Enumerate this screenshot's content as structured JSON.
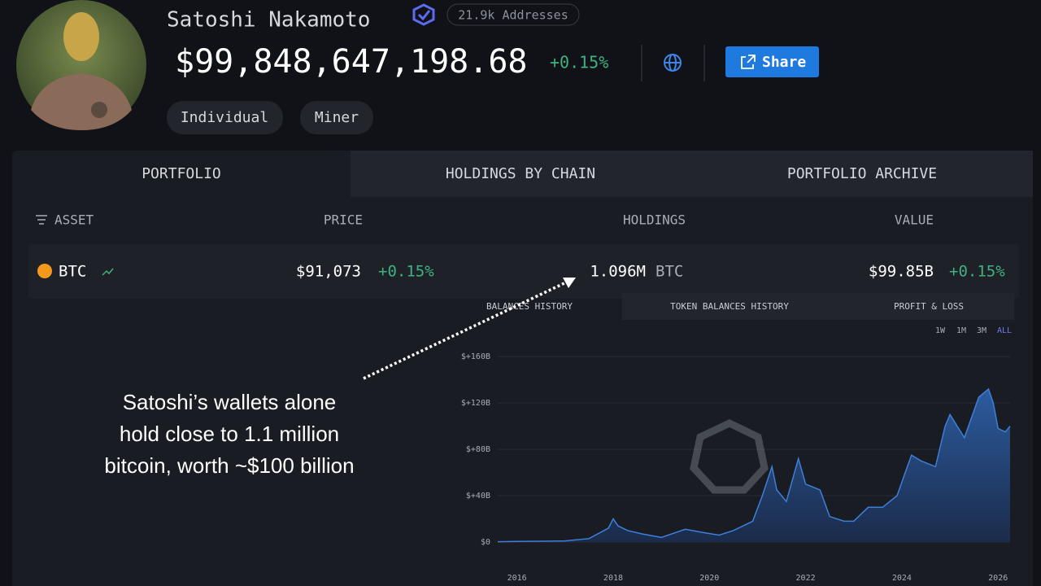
{
  "profile": {
    "name": "Satoshi Nakamoto",
    "addresses": "21.9k Addresses",
    "balance": "$99,848,647,198.68",
    "change": "+0.15%",
    "share": "Share",
    "tags": [
      "Individual",
      "Miner"
    ]
  },
  "tabs": [
    "PORTFOLIO",
    "HOLDINGS BY CHAIN",
    "PORTFOLIO ARCHIVE"
  ],
  "table": {
    "headers": [
      "ASSET",
      "PRICE",
      "HOLDINGS",
      "VALUE"
    ],
    "rows": [
      {
        "asset": "BTC",
        "price": "$91,073",
        "price_change": "+0.15%",
        "holdings": "1.096M",
        "holdings_unit": "BTC",
        "value": "$99.85B",
        "value_change": "+0.15%"
      }
    ]
  },
  "chart_tabs": [
    "BALANCES HISTORY",
    "TOKEN BALANCES HISTORY",
    "PROFIT & LOSS"
  ],
  "ranges": [
    "1W",
    "1M",
    "3M",
    "ALL"
  ],
  "annotation": [
    "Satoshi’s wallets alone",
    "hold close to 1.1 million",
    "bitcoin, worth ~$100 billion"
  ],
  "chart_data": {
    "type": "area",
    "color": "#3d7fd9",
    "x": [
      2015.6,
      2016,
      2016.5,
      2017,
      2017.5,
      2017.9,
      2018.0,
      2018.1,
      2018.3,
      2018.6,
      2019.0,
      2019.5,
      2019.9,
      2020.2,
      2020.5,
      2020.9,
      2021.1,
      2021.3,
      2021.4,
      2021.6,
      2021.85,
      2022.0,
      2022.3,
      2022.5,
      2022.8,
      2023.0,
      2023.3,
      2023.6,
      2023.9,
      2024.2,
      2024.4,
      2024.7,
      2024.9,
      2025.0,
      2025.3,
      2025.6,
      2025.8,
      2025.9,
      2026.0,
      2026.15,
      2026.25
    ],
    "values": [
      0.3,
      0.5,
      0.7,
      1,
      3,
      12,
      20,
      14,
      10,
      7,
      4,
      11,
      8,
      6,
      10,
      18,
      40,
      65,
      45,
      35,
      72,
      50,
      45,
      22,
      18,
      18,
      30,
      30,
      40,
      75,
      70,
      65,
      100,
      110,
      90,
      125,
      132,
      120,
      98,
      95,
      100
    ],
    "xlim": [
      2015.6,
      2026.25
    ],
    "xticks": [
      2016,
      2018,
      2020,
      2022,
      2024,
      2026
    ],
    "ylim": [
      -20,
      165
    ],
    "yticks": [
      {
        "value": 0,
        "label": "$0"
      },
      {
        "value": 40,
        "label": "$+40B"
      },
      {
        "value": 80,
        "label": "$+80B"
      },
      {
        "value": 120,
        "label": "$+120B"
      },
      {
        "value": 160,
        "label": "$+160B"
      }
    ],
    "grid": true
  }
}
